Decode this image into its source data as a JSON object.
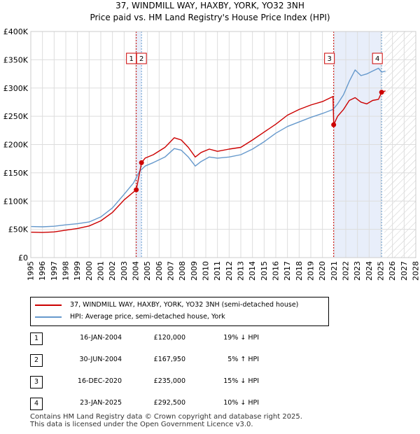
{
  "title_line1": "37, WINDMILL WAY, HAXBY, YORK, YO32 3NH",
  "title_line2": "Price paid vs. HM Land Registry's House Price Index (HPI)",
  "chart_data": {
    "type": "line",
    "y_ticks": [
      "£0",
      "£50K",
      "£100K",
      "£150K",
      "£200K",
      "£250K",
      "£300K",
      "£350K",
      "£400K"
    ],
    "x_ticks": [
      "1995",
      "1996",
      "1997",
      "1998",
      "1999",
      "2000",
      "2001",
      "2002",
      "2003",
      "2004",
      "2005",
      "2006",
      "2007",
      "2008",
      "2009",
      "2010",
      "2011",
      "2012",
      "2013",
      "2014",
      "2015",
      "2016",
      "2017",
      "2018",
      "2019",
      "2020",
      "2021",
      "2022",
      "2023",
      "2024",
      "2025",
      "2026",
      "2027",
      "2028"
    ],
    "xlim": [
      1995,
      2028
    ],
    "ylim": [
      0,
      400000
    ],
    "forecast_start": 2025.3,
    "series": [
      {
        "name": "37, WINDMILL WAY, HAXBY, YORK, YO32 3NH (semi-detached house)",
        "color": "#cc0000",
        "points": [
          [
            1995.0,
            45000
          ],
          [
            1996.0,
            44500
          ],
          [
            1997.0,
            45500
          ],
          [
            1998.0,
            48500
          ],
          [
            1999.0,
            51500
          ],
          [
            2000.0,
            56000
          ],
          [
            2001.0,
            65000
          ],
          [
            2002.0,
            80000
          ],
          [
            2003.0,
            102000
          ],
          [
            2004.04,
            120000
          ],
          [
            2004.04,
            120000
          ],
          [
            2004.49,
            167950
          ],
          [
            2004.8,
            176000
          ],
          [
            2005.5,
            182000
          ],
          [
            2006.5,
            195000
          ],
          [
            2007.3,
            212000
          ],
          [
            2007.9,
            208000
          ],
          [
            2008.5,
            195000
          ],
          [
            2009.1,
            178000
          ],
          [
            2009.6,
            186000
          ],
          [
            2010.3,
            192000
          ],
          [
            2011.0,
            188000
          ],
          [
            2012.0,
            192000
          ],
          [
            2013.0,
            195000
          ],
          [
            2014.0,
            208000
          ],
          [
            2015.0,
            222000
          ],
          [
            2016.0,
            236000
          ],
          [
            2017.0,
            252000
          ],
          [
            2018.0,
            262000
          ],
          [
            2019.0,
            270000
          ],
          [
            2020.0,
            276000
          ],
          [
            2020.9,
            285000
          ],
          [
            2020.96,
            235000
          ],
          [
            2021.3,
            250000
          ],
          [
            2021.8,
            262000
          ],
          [
            2022.3,
            278000
          ],
          [
            2022.8,
            283000
          ],
          [
            2023.3,
            275000
          ],
          [
            2023.8,
            272000
          ],
          [
            2024.3,
            278000
          ],
          [
            2024.8,
            280000
          ],
          [
            2025.07,
            292500
          ],
          [
            2025.4,
            295000
          ]
        ]
      },
      {
        "name": "HPI: Average price, semi-detached house, York",
        "color": "#6699cc",
        "points": [
          [
            1995.0,
            55000
          ],
          [
            1996.0,
            54500
          ],
          [
            1997.0,
            55500
          ],
          [
            1998.0,
            58000
          ],
          [
            1999.0,
            60000
          ],
          [
            2000.0,
            63000
          ],
          [
            2001.0,
            72000
          ],
          [
            2002.0,
            88000
          ],
          [
            2003.0,
            112000
          ],
          [
            2003.8,
            132000
          ],
          [
            2004.3,
            152000
          ],
          [
            2004.8,
            162000
          ],
          [
            2005.5,
            168000
          ],
          [
            2006.5,
            178000
          ],
          [
            2007.3,
            193000
          ],
          [
            2007.9,
            190000
          ],
          [
            2008.5,
            178000
          ],
          [
            2009.1,
            162000
          ],
          [
            2009.6,
            170000
          ],
          [
            2010.3,
            178000
          ],
          [
            2011.0,
            176000
          ],
          [
            2012.0,
            178000
          ],
          [
            2013.0,
            182000
          ],
          [
            2014.0,
            192000
          ],
          [
            2015.0,
            205000
          ],
          [
            2016.0,
            220000
          ],
          [
            2017.0,
            232000
          ],
          [
            2018.0,
            240000
          ],
          [
            2019.0,
            248000
          ],
          [
            2020.0,
            255000
          ],
          [
            2020.9,
            262000
          ],
          [
            2021.3,
            272000
          ],
          [
            2021.8,
            288000
          ],
          [
            2022.3,
            312000
          ],
          [
            2022.8,
            332000
          ],
          [
            2023.3,
            322000
          ],
          [
            2023.8,
            325000
          ],
          [
            2024.3,
            330000
          ],
          [
            2024.8,
            335000
          ],
          [
            2025.07,
            328000
          ],
          [
            2025.4,
            330000
          ]
        ]
      }
    ],
    "markers": [
      {
        "label": "1",
        "x": 2004.04,
        "y": 120000
      },
      {
        "label": "2",
        "x": 2004.49,
        "y": 167950
      },
      {
        "label": "3",
        "x": 2020.96,
        "y": 235000
      },
      {
        "label": "4",
        "x": 2025.07,
        "y": 292500
      }
    ],
    "shaded_ranges": [
      [
        2004.04,
        2004.49
      ],
      [
        2020.96,
        2025.07
      ]
    ]
  },
  "legend": {
    "red_label": "37, WINDMILL WAY, HAXBY, YORK, YO32 3NH (semi-detached house)",
    "blue_label": "HPI: Average price, semi-detached house, York"
  },
  "transactions": [
    {
      "num": "1",
      "date": "16-JAN-2004",
      "price": "£120,000",
      "hpi": "19% ↓ HPI"
    },
    {
      "num": "2",
      "date": "30-JUN-2004",
      "price": "£167,950",
      "hpi": "5% ↑ HPI"
    },
    {
      "num": "3",
      "date": "16-DEC-2020",
      "price": "£235,000",
      "hpi": "15% ↓ HPI"
    },
    {
      "num": "4",
      "date": "23-JAN-2025",
      "price": "£292,500",
      "hpi": "10% ↓ HPI"
    }
  ],
  "footer_line1": "Contains HM Land Registry data © Crown copyright and database right 2025.",
  "footer_line2": "This data is licensed under the Open Government Licence v3.0."
}
